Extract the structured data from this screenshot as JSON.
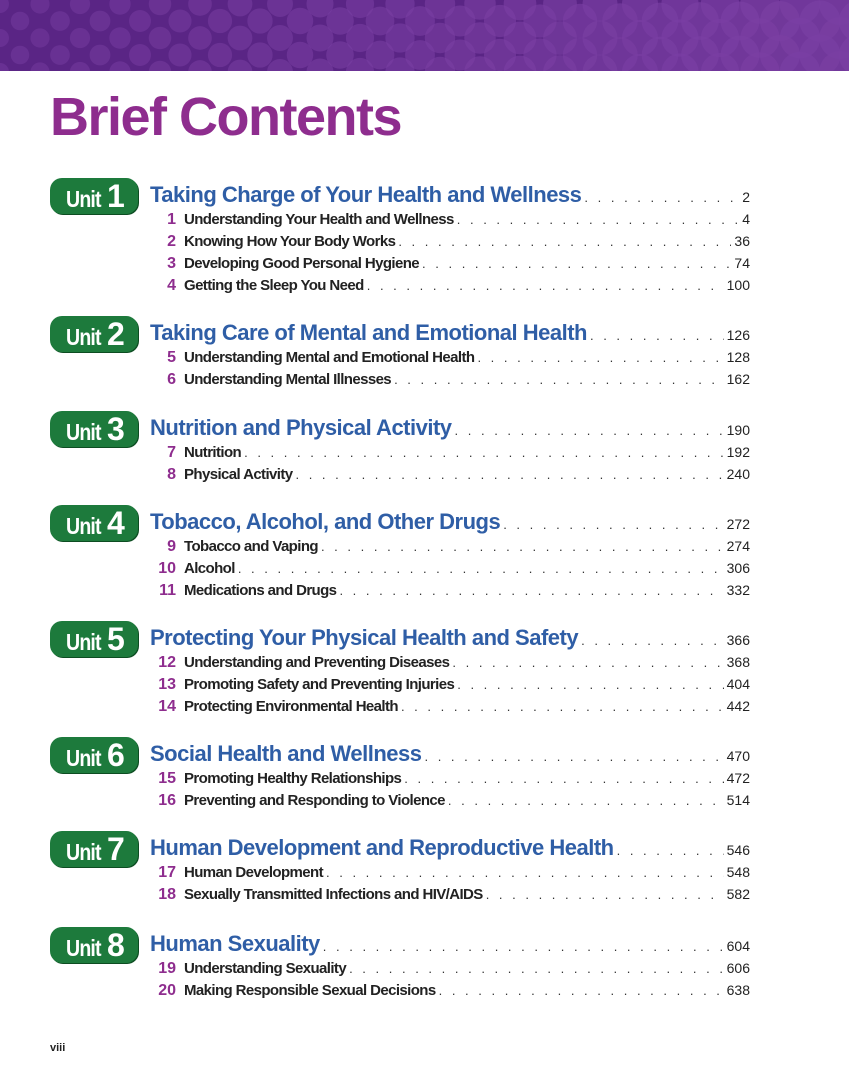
{
  "header": {
    "title": "Brief Contents",
    "banner_color": "#5a2585"
  },
  "units": [
    {
      "label": "Unit",
      "number": "1",
      "title": "Taking Charge of Your Health and Wellness",
      "page": "2",
      "chapters": [
        {
          "number": "1",
          "title": "Understanding Your Health and Wellness",
          "page": "4"
        },
        {
          "number": "2",
          "title": "Knowing How Your Body Works",
          "page": "36"
        },
        {
          "number": "3",
          "title": "Developing Good Personal Hygiene",
          "page": "74"
        },
        {
          "number": "4",
          "title": "Getting the Sleep You Need",
          "page": "100"
        }
      ]
    },
    {
      "label": "Unit",
      "number": "2",
      "title": "Taking Care of Mental and Emotional Health",
      "page": "126",
      "chapters": [
        {
          "number": "5",
          "title": "Understanding Mental and Emotional Health",
          "page": "128"
        },
        {
          "number": "6",
          "title": "Understanding Mental Illnesses",
          "page": "162"
        }
      ]
    },
    {
      "label": "Unit",
      "number": "3",
      "title": "Nutrition and Physical Activity",
      "page": "190",
      "chapters": [
        {
          "number": "7",
          "title": "Nutrition",
          "page": "192"
        },
        {
          "number": "8",
          "title": "Physical Activity",
          "page": "240"
        }
      ]
    },
    {
      "label": "Unit",
      "number": "4",
      "title": "Tobacco, Alcohol, and Other Drugs",
      "page": "272",
      "chapters": [
        {
          "number": "9",
          "title": "Tobacco and Vaping",
          "page": "274"
        },
        {
          "number": "10",
          "title": "Alcohol",
          "page": "306"
        },
        {
          "number": "11",
          "title": "Medications and Drugs",
          "page": "332"
        }
      ]
    },
    {
      "label": "Unit",
      "number": "5",
      "title": "Protecting Your Physical Health and Safety",
      "page": "366",
      "chapters": [
        {
          "number": "12",
          "title": "Understanding and Preventing Diseases",
          "page": "368"
        },
        {
          "number": "13",
          "title": "Promoting Safety and Preventing Injuries",
          "page": "404"
        },
        {
          "number": "14",
          "title": "Protecting Environmental Health",
          "page": "442"
        }
      ]
    },
    {
      "label": "Unit",
      "number": "6",
      "title": "Social Health and Wellness",
      "page": "470",
      "chapters": [
        {
          "number": "15",
          "title": "Promoting Healthy Relationships",
          "page": "472"
        },
        {
          "number": "16",
          "title": "Preventing and Responding to Violence",
          "page": "514"
        }
      ]
    },
    {
      "label": "Unit",
      "number": "7",
      "title": "Human Development and Reproductive Health",
      "page": "546",
      "chapters": [
        {
          "number": "17",
          "title": "Human Development",
          "page": "548"
        },
        {
          "number": "18",
          "title": "Sexually Transmitted Infections and HIV/AIDS",
          "page": "582"
        }
      ]
    },
    {
      "label": "Unit",
      "number": "8",
      "title": "Human Sexuality",
      "page": "604",
      "chapters": [
        {
          "number": "19",
          "title": "Understanding Sexuality",
          "page": "606"
        },
        {
          "number": "20",
          "title": "Making Responsible Sexual Decisions",
          "page": "638"
        }
      ]
    }
  ],
  "footer": {
    "folio": "viii"
  }
}
